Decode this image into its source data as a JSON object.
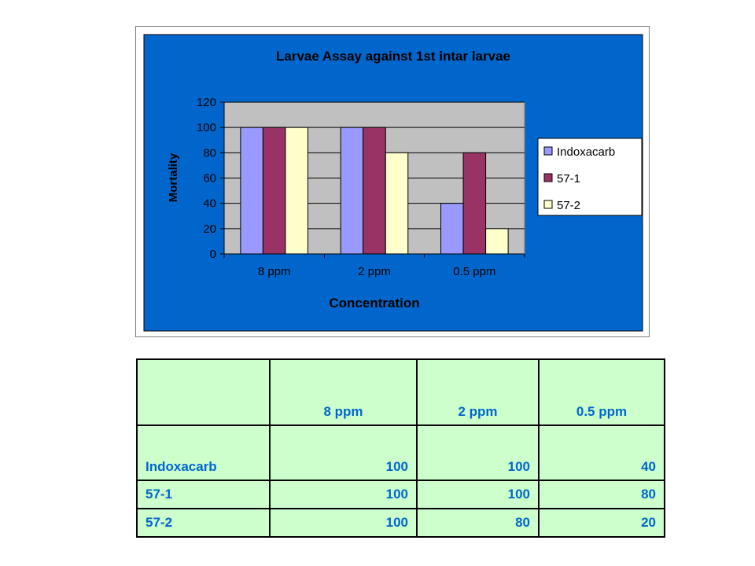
{
  "chart_data": {
    "type": "bar",
    "title": "Larvae Assay against 1st intar larvae",
    "xlabel": "Concentration",
    "ylabel": "Mortality",
    "categories": [
      "8 ppm",
      "2 ppm",
      "0.5 ppm"
    ],
    "ylim": [
      0,
      120
    ],
    "yticks": [
      0,
      20,
      40,
      60,
      80,
      100,
      120
    ],
    "grid": true,
    "legend_position": "right",
    "series": [
      {
        "name": "Indoxacarb",
        "values": [
          100,
          100,
          40
        ],
        "color": "#9999ff"
      },
      {
        "name": "57-1",
        "values": [
          100,
          100,
          80
        ],
        "color": "#993366"
      },
      {
        "name": "57-2",
        "values": [
          100,
          80,
          20
        ],
        "color": "#ffffcc"
      }
    ]
  },
  "colors": {
    "chart_area": "#0066cc",
    "plot_area": "#c0c0c0",
    "table_bg": "#ccffcc",
    "table_text": "#0066cc"
  },
  "table": {
    "headers": [
      "",
      "8 ppm",
      "2 ppm",
      "0.5 ppm"
    ],
    "rows": [
      {
        "label": "Indoxacarb",
        "values": [
          "100",
          "100",
          "40"
        ]
      },
      {
        "label": "57-1",
        "values": [
          "100",
          "100",
          "80"
        ]
      },
      {
        "label": "57-2",
        "values": [
          "100",
          "80",
          "20"
        ]
      }
    ]
  }
}
